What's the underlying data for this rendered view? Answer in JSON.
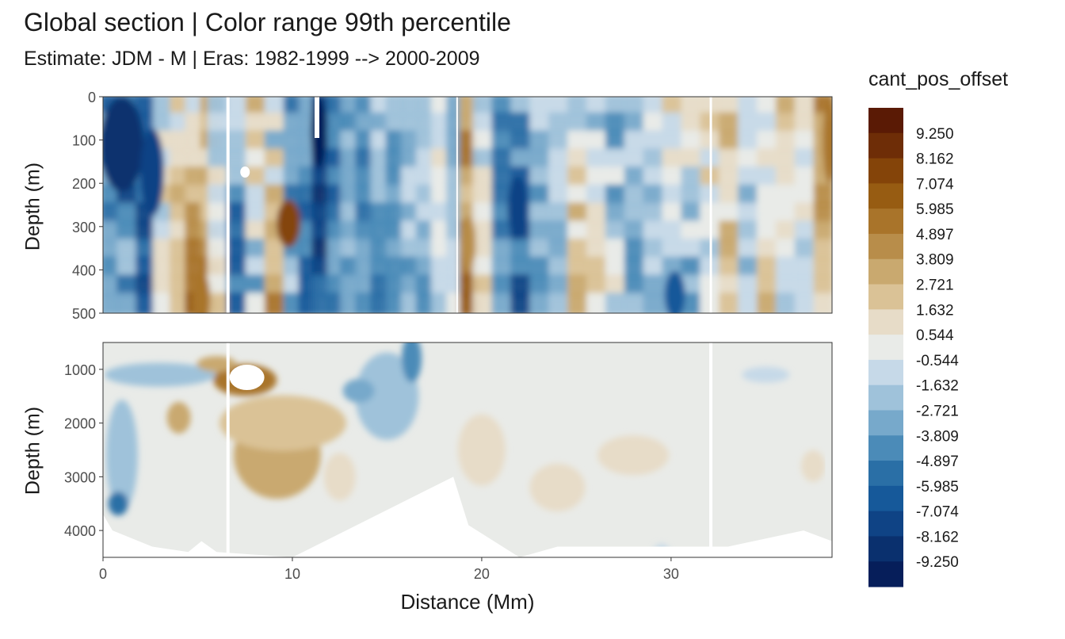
{
  "chart_data": {
    "type": "heatmap",
    "title": "Global section | Color range 99th percentile",
    "subtitle": "Estimate: JDM - M | Eras: 1982-1999 --> 2000-2009",
    "xlabel": "Distance (Mm)",
    "ylabel": "Depth (m)",
    "x_ticks": [
      "0",
      "10",
      "20",
      "30"
    ],
    "xlim": [
      0,
      38.5
    ],
    "panels": [
      {
        "name": "upper",
        "ylim": [
          0,
          500
        ],
        "y_ticks": [
          "0",
          "100",
          "200",
          "300",
          "400",
          "500"
        ]
      },
      {
        "name": "lower",
        "ylim": [
          500,
          4500
        ],
        "y_ticks": [
          "1000",
          "2000",
          "3000",
          "4000"
        ]
      }
    ],
    "legend": {
      "title": "cant_pos_offset",
      "labels": [
        "9.250",
        "8.162",
        "7.074",
        "5.985",
        "4.897",
        "3.809",
        "2.721",
        "1.632",
        "0.544",
        "-0.544",
        "-1.632",
        "-2.721",
        "-3.809",
        "-4.897",
        "-5.985",
        "-7.074",
        "-8.162",
        "-9.250"
      ],
      "colors": [
        "#5a1a05",
        "#6e2d07",
        "#844409",
        "#975c12",
        "#a9742a",
        "#b88d4a",
        "#c9a96f",
        "#dac296",
        "#e7dcc8",
        "#e9ebe8",
        "#c6d9e8",
        "#9fc2da",
        "#77a9cb",
        "#4b8bb8",
        "#2a6fa6",
        "#16599a",
        "#0f4385",
        "#0a306e",
        "#061e5a"
      ]
    },
    "grid": true,
    "legend_position": "right"
  }
}
